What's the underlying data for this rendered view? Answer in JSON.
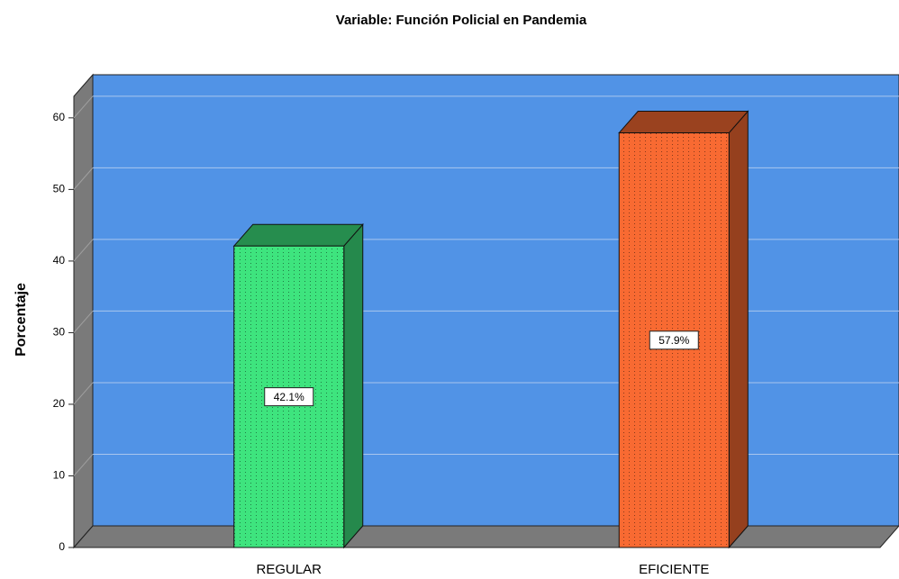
{
  "chart_data": {
    "type": "bar3d",
    "title": "Variable: Función Policial en Pandemia",
    "y_label": "Porcentaje",
    "categories": [
      "REGULAR",
      "EFICIENTE"
    ],
    "values": [
      42.1,
      57.9
    ],
    "value_labels": [
      "42.1%",
      "57.9%"
    ],
    "colors": [
      "#3ee47e",
      "#f86a32"
    ],
    "ylim": [
      0,
      63
    ],
    "yticks": [
      0,
      10,
      20,
      30,
      40,
      50,
      60
    ],
    "grid": true
  }
}
